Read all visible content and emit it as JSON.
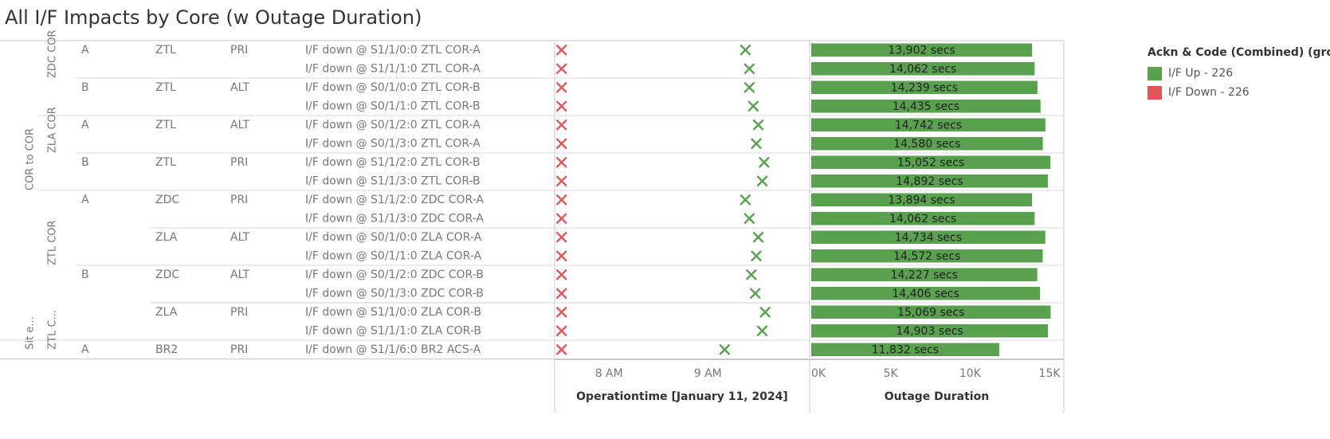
{
  "title": "All I/F Impacts by Core (w Outage Duration)",
  "legend": {
    "title": "Ackn & Code (Combined) (group)",
    "items": [
      {
        "label": "I/F Up - 226",
        "color": "#59A14F"
      },
      {
        "label": "I/F Down - 226",
        "color": "#E15759"
      }
    ]
  },
  "colors": {
    "up": "#59A14F",
    "down": "#E15759",
    "bar": "#59A14F"
  },
  "chart_data": [
    {
      "type": "scatter",
      "xlabel": "Operationtime [January 11, 2024]",
      "xticks": [
        "8 AM",
        "9 AM"
      ],
      "xlim_hours": [
        7.45,
        10.03
      ],
      "series": [
        {
          "name": "I/F Down - 226",
          "marker": "x",
          "color": "#E15759",
          "x_hours": [
            7.52,
            7.52,
            7.52,
            7.52,
            7.52,
            7.52,
            7.52,
            7.52,
            7.52,
            7.52,
            7.52,
            7.52,
            7.52,
            7.52,
            7.52,
            7.52,
            7.52
          ]
        },
        {
          "name": "I/F Up - 226",
          "marker": "x",
          "color": "#59A14F",
          "x_hours": [
            9.38,
            9.42,
            9.42,
            9.46,
            9.51,
            9.49,
            9.57,
            9.55,
            9.38,
            9.42,
            9.51,
            9.49,
            9.44,
            9.48,
            9.58,
            9.55,
            9.17
          ]
        }
      ]
    },
    {
      "type": "bar",
      "orientation": "horizontal",
      "xlabel": "Outage Duration",
      "xticks": [
        "0K",
        "5K",
        "10K",
        "15K"
      ],
      "xlim": [
        0,
        15800
      ],
      "unit": "secs",
      "values": [
        13902,
        14062,
        14239,
        14435,
        14742,
        14580,
        15052,
        14892,
        13894,
        14062,
        14734,
        14572,
        14227,
        14406,
        15069,
        14903,
        11832
      ],
      "labels": [
        "13,902 secs",
        "14,062 secs",
        "14,239 secs",
        "14,435 secs",
        "14,742 secs",
        "14,580 secs",
        "15,052 secs",
        "14,892 secs",
        "13,894 secs",
        "14,062 secs",
        "14,734 secs",
        "14,572 secs",
        "14,227 secs",
        "14,406 secs",
        "15,069 secs",
        "14,903 secs",
        "11,832 secs"
      ]
    }
  ],
  "table": {
    "level1": [
      {
        "label": "COR to COR",
        "start": 0,
        "end": 16
      },
      {
        "label": "Sit e...",
        "start": 16,
        "end": 17
      }
    ],
    "level2": [
      {
        "label": "ZDC COR",
        "start": 0,
        "end": 4
      },
      {
        "label": "ZLA COR",
        "start": 4,
        "end": 8
      },
      {
        "label": "ZTL COR",
        "start": 8,
        "end": 16
      },
      {
        "label": "ZTL C...",
        "start": 16,
        "end": 17
      }
    ],
    "level3": [
      {
        "label": "A",
        "start": 0,
        "end": 2
      },
      {
        "label": "B",
        "start": 2,
        "end": 4
      },
      {
        "label": "A",
        "start": 4,
        "end": 6
      },
      {
        "label": "B",
        "start": 6,
        "end": 8
      },
      {
        "label": "A",
        "start": 8,
        "end": 12
      },
      {
        "label": "B",
        "start": 12,
        "end": 16
      },
      {
        "label": "A",
        "start": 16,
        "end": 17
      }
    ],
    "level4": [
      {
        "label": "ZTL",
        "start": 0,
        "end": 2
      },
      {
        "label": "ZTL",
        "start": 2,
        "end": 4
      },
      {
        "label": "ZTL",
        "start": 4,
        "end": 6
      },
      {
        "label": "ZTL",
        "start": 6,
        "end": 8
      },
      {
        "label": "ZDC",
        "start": 8,
        "end": 10
      },
      {
        "label": "ZLA",
        "start": 10,
        "end": 12
      },
      {
        "label": "ZDC",
        "start": 12,
        "end": 14
      },
      {
        "label": "ZLA",
        "start": 14,
        "end": 16
      },
      {
        "label": "BR2",
        "start": 16,
        "end": 17
      }
    ],
    "level5": [
      {
        "label": "PRI",
        "start": 0,
        "end": 2
      },
      {
        "label": "ALT",
        "start": 2,
        "end": 4
      },
      {
        "label": "ALT",
        "start": 4,
        "end": 6
      },
      {
        "label": "PRI",
        "start": 6,
        "end": 8
      },
      {
        "label": "PRI",
        "start": 8,
        "end": 10
      },
      {
        "label": "ALT",
        "start": 10,
        "end": 12
      },
      {
        "label": "ALT",
        "start": 12,
        "end": 14
      },
      {
        "label": "PRI",
        "start": 14,
        "end": 16
      },
      {
        "label": "PRI",
        "start": 16,
        "end": 17
      }
    ],
    "rows": [
      "I/F down @ S1/1/0:0 ZTL COR-A",
      "I/F down @ S1/1/1:0 ZTL COR-A",
      "I/F down @ S0/1/0:0 ZTL COR-B",
      "I/F down @ S0/1/1:0 ZTL COR-B",
      "I/F down @ S0/1/2:0 ZTL COR-A",
      "I/F down @ S0/1/3:0 ZTL COR-A",
      "I/F down @ S1/1/2:0 ZTL COR-B",
      "I/F down @ S1/1/3:0 ZTL COR-B",
      "I/F down @ S1/1/2:0 ZDC COR-A",
      "I/F down @ S1/1/3:0 ZDC COR-A",
      "I/F down @ S0/1/0:0 ZLA COR-A",
      "I/F down @ S0/1/1:0 ZLA COR-A",
      "I/F down @ S0/1/2:0 ZDC COR-B",
      "I/F down @ S0/1/3:0 ZDC COR-B",
      "I/F down @ S1/1/0:0 ZLA COR-B",
      "I/F down @ S1/1/1:0 ZLA COR-B",
      "I/F down @ S1/1/6:0 BR2 ACS-A"
    ]
  }
}
